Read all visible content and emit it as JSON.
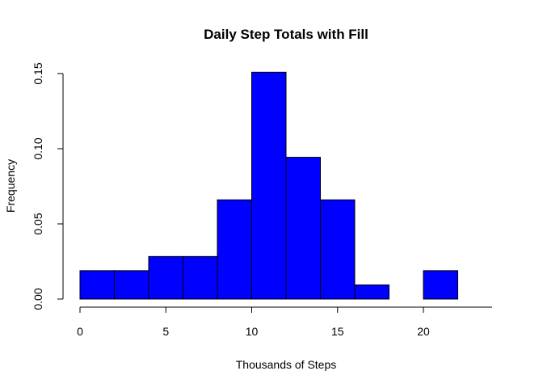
{
  "chart_data": {
    "type": "bar",
    "subtype": "histogram",
    "title": "Daily Step Totals with Fill",
    "xlabel": "Thousands of Steps",
    "ylabel": "Frequency",
    "bins": [
      {
        "start": 0,
        "end": 2,
        "value": 0.0189
      },
      {
        "start": 2,
        "end": 4,
        "value": 0.0189
      },
      {
        "start": 4,
        "end": 6,
        "value": 0.0283
      },
      {
        "start": 6,
        "end": 8,
        "value": 0.0283
      },
      {
        "start": 8,
        "end": 10,
        "value": 0.066
      },
      {
        "start": 10,
        "end": 12,
        "value": 0.1509
      },
      {
        "start": 12,
        "end": 14,
        "value": 0.0943
      },
      {
        "start": 14,
        "end": 16,
        "value": 0.066
      },
      {
        "start": 16,
        "end": 18,
        "value": 0.0094
      },
      {
        "start": 18,
        "end": 20,
        "value": 0
      },
      {
        "start": 20,
        "end": 22,
        "value": 0.0189
      }
    ],
    "xlim": [
      0,
      24
    ],
    "ylim": [
      0,
      0.15
    ],
    "x_ticks": [
      "0",
      "5",
      "10",
      "15",
      "20"
    ],
    "y_ticks": [
      "0.00",
      "0.05",
      "0.10",
      "0.15"
    ],
    "bar_color": "#0000ff",
    "bar_edge_color": "#000000",
    "grid": false,
    "legend": "none"
  }
}
